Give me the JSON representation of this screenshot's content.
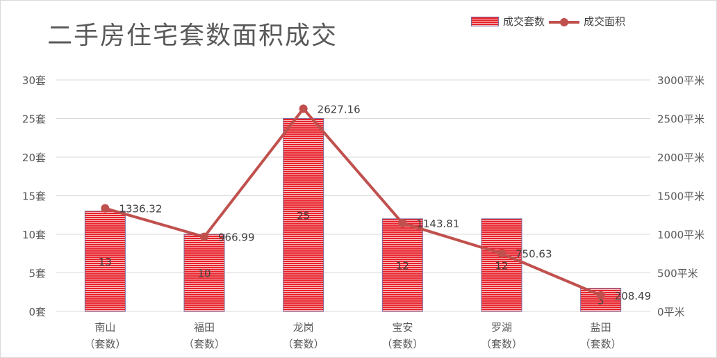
{
  "chart_data": {
    "type": "bar+line",
    "title": "二手房住宅套数面积成交",
    "categories": [
      "南山\n（套数）",
      "福田\n（套数）",
      "龙岗\n（套数）",
      "宝安\n（套数）",
      "罗湖\n（套数）",
      "盐田\n（套数）"
    ],
    "series": [
      {
        "name": "成交套数",
        "type": "bar",
        "axis": "left",
        "values": [
          13,
          10,
          25,
          12,
          12,
          3
        ],
        "labels": [
          "13",
          "10",
          "25",
          "12",
          "12",
          "3"
        ]
      },
      {
        "name": "成交面积",
        "type": "line",
        "axis": "right",
        "values": [
          1336.32,
          966.99,
          2627.16,
          1143.81,
          750.63,
          208.49
        ],
        "labels": [
          "1336.32",
          "966.99",
          "2627.16",
          "1143.81",
          "750.63",
          "208.49"
        ]
      }
    ],
    "y_left": {
      "min": 0,
      "max": 30,
      "step": 5,
      "tick_labels": [
        "0套",
        "5套",
        "10套",
        "15套",
        "20套",
        "25套",
        "30套"
      ]
    },
    "y_right": {
      "min": 0,
      "max": 3000,
      "step": 500,
      "tick_labels": [
        "0平米",
        "500平米",
        "1000平米",
        "1500平米",
        "2000平米",
        "2500平米",
        "3000平米"
      ]
    },
    "grid": true,
    "legend_position": "top-right",
    "colors": {
      "bar": "#e8222c",
      "bar_stripe": "#f7c4c4",
      "bar_edge": "#7a6a9a",
      "line": "#c0504d",
      "grid": "#d9d9d9",
      "axis_text": "#595959"
    }
  }
}
